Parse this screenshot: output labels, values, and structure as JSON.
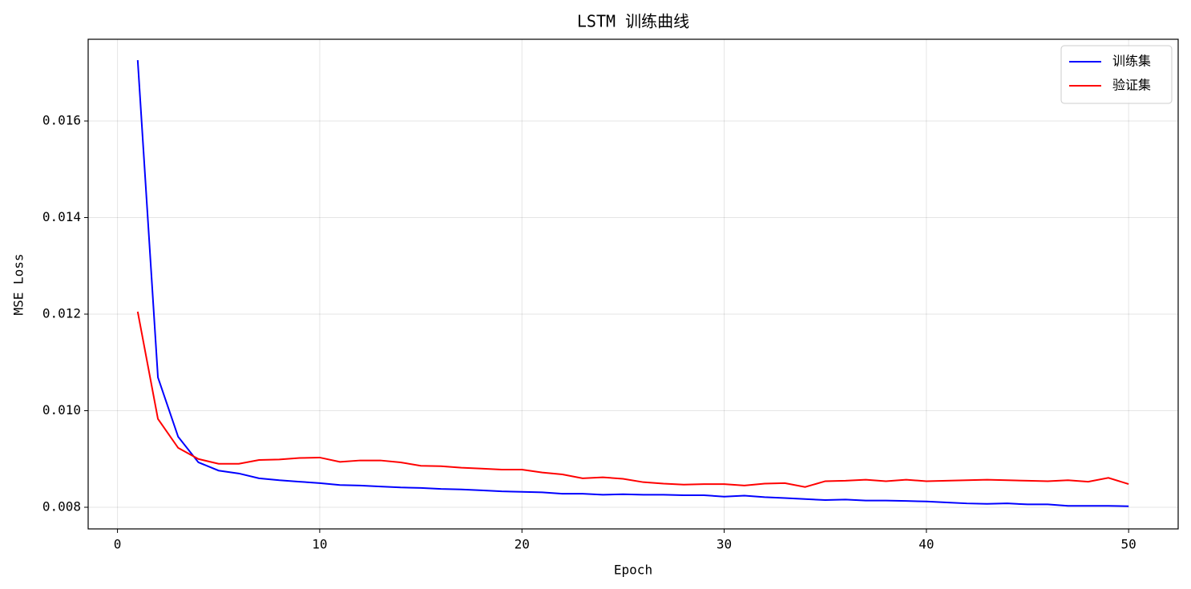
{
  "chart_data": {
    "type": "line",
    "title": "LSTM 训练曲线",
    "xlabel": "Epoch",
    "ylabel": "MSE Loss",
    "x": [
      1,
      2,
      3,
      4,
      5,
      6,
      7,
      8,
      9,
      10,
      11,
      12,
      13,
      14,
      15,
      16,
      17,
      18,
      19,
      20,
      21,
      22,
      23,
      24,
      25,
      26,
      27,
      28,
      29,
      30,
      31,
      32,
      33,
      34,
      35,
      36,
      37,
      38,
      39,
      40,
      41,
      42,
      43,
      44,
      45,
      46,
      47,
      48,
      49,
      50
    ],
    "series": [
      {
        "name": "训练集",
        "color": "#0000ff",
        "values": [
          0.01726,
          0.01069,
          0.00946,
          0.00893,
          0.00876,
          0.0087,
          0.0086,
          0.00856,
          0.00853,
          0.0085,
          0.00846,
          0.00845,
          0.00843,
          0.00841,
          0.0084,
          0.00838,
          0.00837,
          0.00835,
          0.00833,
          0.00832,
          0.00831,
          0.00828,
          0.00828,
          0.00826,
          0.00827,
          0.00826,
          0.00826,
          0.00825,
          0.00825,
          0.00822,
          0.00824,
          0.00821,
          0.00819,
          0.00817,
          0.00815,
          0.00816,
          0.00814,
          0.00814,
          0.00813,
          0.00812,
          0.0081,
          0.00808,
          0.00807,
          0.00808,
          0.00806,
          0.00806,
          0.00803,
          0.00803,
          0.00803,
          0.00802
        ]
      },
      {
        "name": "验证集",
        "color": "#ff0000",
        "values": [
          0.01205,
          0.00983,
          0.00923,
          0.009,
          0.0089,
          0.0089,
          0.00898,
          0.00899,
          0.00902,
          0.00903,
          0.00894,
          0.00897,
          0.00897,
          0.00893,
          0.00886,
          0.00885,
          0.00882,
          0.0088,
          0.00878,
          0.00878,
          0.00872,
          0.00868,
          0.0086,
          0.00862,
          0.00859,
          0.00852,
          0.00849,
          0.00847,
          0.00848,
          0.00848,
          0.00845,
          0.00849,
          0.0085,
          0.00842,
          0.00854,
          0.00855,
          0.00857,
          0.00854,
          0.00857,
          0.00854,
          0.00855,
          0.00856,
          0.00857,
          0.00856,
          0.00855,
          0.00854,
          0.00856,
          0.00853,
          0.00861,
          0.00848
        ]
      }
    ],
    "xlim": [
      -1.45,
      52.45
    ],
    "xticks": [
      0,
      10,
      20,
      30,
      40,
      50
    ],
    "ylim": [
      0.007552,
      0.017693
    ],
    "yticks": [
      0.008,
      {
        "value": 0.01,
        "label": "0.010"
      },
      0.012,
      0.014,
      0.016
    ],
    "grid": true,
    "legend": "upper right"
  }
}
